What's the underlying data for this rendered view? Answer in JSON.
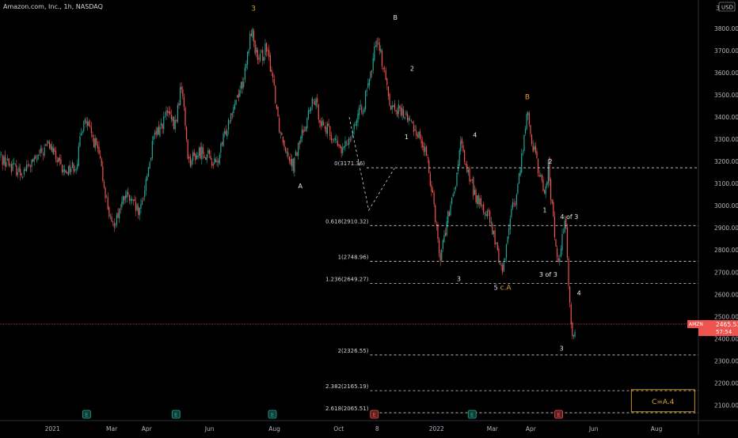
{
  "chart_data": {
    "type": "candlestick",
    "title": "Amazon.com, Inc., 1h, NASDAQ",
    "currency": "USD",
    "y_axis": {
      "ticks": [
        "3800.00",
        "3700.00",
        "3600.00",
        "3500.00",
        "3400.00",
        "3300.00",
        "3200.00",
        "3100.00",
        "3000.00",
        "2900.00",
        "2800.00",
        "2700.00",
        "2600.00",
        "2500.00",
        "2400.00",
        "2300.00",
        "2200.00",
        "2100.00"
      ],
      "ylim": [
        2030,
        3900
      ]
    },
    "x_axis": {
      "ticks": [
        "2021",
        "Mar",
        "Apr",
        "Jun",
        "Aug",
        "Oct",
        "8",
        "2022",
        "Mar",
        "Apr",
        "Jun",
        "Aug"
      ]
    },
    "price_path": [
      [
        0,
        3220
      ],
      [
        0.03,
        3150
      ],
      [
        0.05,
        3200
      ],
      [
        0.07,
        3280
      ],
      [
        0.09,
        3150
      ],
      [
        0.11,
        3190
      ],
      [
        0.12,
        3400
      ],
      [
        0.14,
        3250
      ],
      [
        0.16,
        2900
      ],
      [
        0.18,
        3050
      ],
      [
        0.2,
        2960
      ],
      [
        0.22,
        3300
      ],
      [
        0.24,
        3420
      ],
      [
        0.25,
        3350
      ],
      [
        0.26,
        3550
      ],
      [
        0.27,
        3200
      ],
      [
        0.29,
        3250
      ],
      [
        0.31,
        3180
      ],
      [
        0.33,
        3420
      ],
      [
        0.35,
        3580
      ],
      [
        0.36,
        3800
      ],
      [
        0.37,
        3640
      ],
      [
        0.38,
        3710
      ],
      [
        0.39,
        3600
      ],
      [
        0.4,
        3350
      ],
      [
        0.41,
        3260
      ],
      [
        0.42,
        3180
      ],
      [
        0.43,
        3300
      ],
      [
        0.44,
        3400
      ],
      [
        0.45,
        3480
      ],
      [
        0.46,
        3380
      ],
      [
        0.48,
        3290
      ],
      [
        0.49,
        3240
      ],
      [
        0.5,
        3310
      ],
      [
        0.51,
        3390
      ],
      [
        0.52,
        3450
      ],
      [
        0.53,
        3570
      ],
      [
        0.54,
        3780
      ],
      [
        0.55,
        3600
      ],
      [
        0.56,
        3450
      ],
      [
        0.58,
        3410
      ],
      [
        0.6,
        3320
      ],
      [
        0.61,
        3230
      ],
      [
        0.62,
        3050
      ],
      [
        0.63,
        2760
      ],
      [
        0.64,
        2930
      ],
      [
        0.65,
        3050
      ],
      [
        0.66,
        3280
      ],
      [
        0.67,
        3150
      ],
      [
        0.68,
        3050
      ],
      [
        0.69,
        2990
      ],
      [
        0.7,
        2950
      ],
      [
        0.71,
        2820
      ],
      [
        0.72,
        2700
      ],
      [
        0.73,
        2950
      ],
      [
        0.74,
        3050
      ],
      [
        0.75,
        3300
      ],
      [
        0.755,
        3420
      ],
      [
        0.76,
        3320
      ],
      [
        0.77,
        3170
      ],
      [
        0.78,
        3050
      ],
      [
        0.785,
        3180
      ],
      [
        0.79,
        3000
      ],
      [
        0.795,
        2850
      ],
      [
        0.8,
        2720
      ],
      [
        0.805,
        2900
      ],
      [
        0.81,
        2910
      ],
      [
        0.815,
        2600
      ],
      [
        0.82,
        2380
      ],
      [
        0.825,
        2465
      ]
    ],
    "current_price": {
      "symbol": "AMZN",
      "value": "2465.53",
      "countdown": "57:54"
    },
    "fib_levels": [
      {
        "label": "0(3171.36)",
        "value": 3171.36
      },
      {
        "label": "0.618(2910.32)",
        "value": 2910.32
      },
      {
        "label": "1(2748.96)",
        "value": 2748.96
      },
      {
        "label": "1.236(2649.27)",
        "value": 2649.27
      },
      {
        "label": "2(2326.55)",
        "value": 2326.55
      },
      {
        "label": "2.382(2165.19)",
        "value": 2165.19
      },
      {
        "label": "2.618(2065.51)",
        "value": 2065.51
      }
    ],
    "annotations": [
      {
        "text": "3",
        "color": "orange",
        "t": 0.363,
        "y": 3880
      },
      {
        "text": "B",
        "color": "white",
        "t": 0.566,
        "y": 3840
      },
      {
        "text": "2",
        "color": "white",
        "t": 0.59,
        "y": 3610
      },
      {
        "text": "1",
        "color": "white",
        "t": 0.582,
        "y": 3300
      },
      {
        "text": "A",
        "color": "white",
        "t": 0.43,
        "y": 3080
      },
      {
        "text": "B",
        "color": "orange",
        "t": 0.755,
        "y": 3480
      },
      {
        "text": "4",
        "color": "white",
        "t": 0.68,
        "y": 3310
      },
      {
        "text": "2",
        "color": "white",
        "t": 0.788,
        "y": 3190
      },
      {
        "text": "1",
        "color": "white",
        "t": 0.78,
        "y": 2970
      },
      {
        "text": "4 of 3",
        "color": "white",
        "t": 0.815,
        "y": 2940
      },
      {
        "text": "3 of 3",
        "color": "white",
        "t": 0.785,
        "y": 2680
      },
      {
        "text": "3",
        "color": "white",
        "t": 0.657,
        "y": 2660
      },
      {
        "text": "5",
        "color": "white",
        "t": 0.71,
        "y": 2620
      },
      {
        "text": "c.A",
        "color": "orange",
        "t": 0.724,
        "y": 2620
      },
      {
        "text": "4",
        "color": "white",
        "t": 0.829,
        "y": 2595
      },
      {
        "text": "3",
        "color": "white",
        "t": 0.804,
        "y": 2345
      }
    ],
    "note_box": "C=A.4",
    "earnings_markers": [
      {
        "t": 0.124,
        "type": "E",
        "color": "green"
      },
      {
        "t": 0.252,
        "type": "E",
        "color": "green"
      },
      {
        "t": 0.39,
        "type": "E",
        "color": "green"
      },
      {
        "t": 0.536,
        "type": "E",
        "color": "red"
      },
      {
        "t": 0.676,
        "type": "E",
        "color": "green"
      },
      {
        "t": 0.8,
        "type": "E",
        "color": "red"
      }
    ],
    "corner_label": "3"
  }
}
